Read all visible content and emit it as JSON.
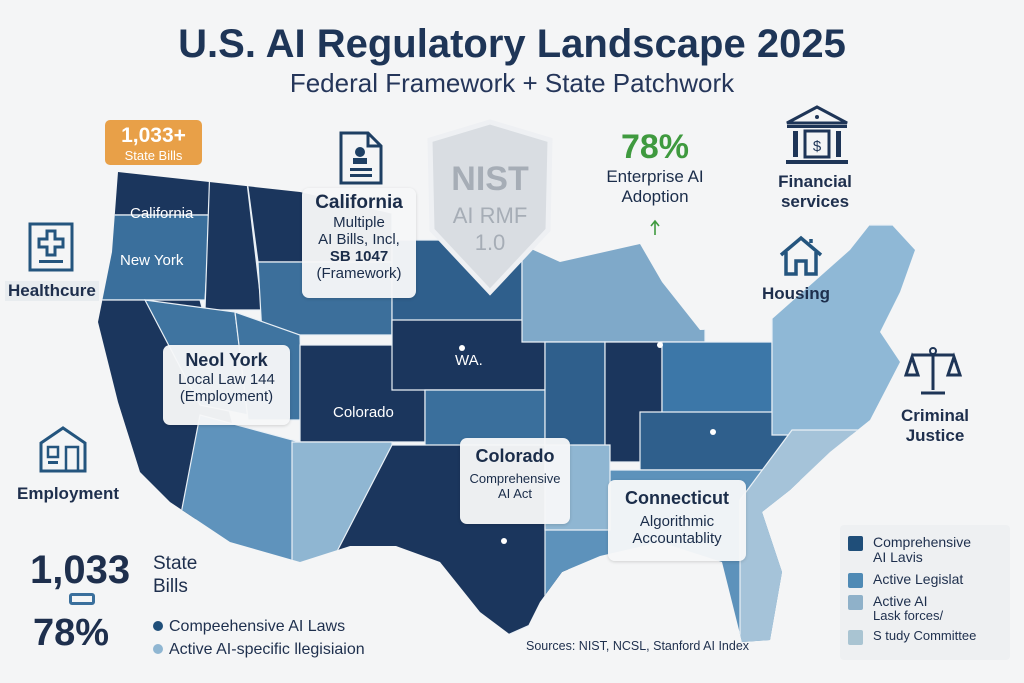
{
  "header": {
    "title": "U.S. AI Regulatory Landscape 2025",
    "subtitle": "Federal Framework + State Patchwork"
  },
  "badge": {
    "value": "1,033+",
    "label": "State Bills",
    "color": "#e8a048"
  },
  "shield": {
    "line1": "NIST",
    "line2": "AI RMF",
    "line3": "1.0"
  },
  "adoption": {
    "value": "78%",
    "label1": "Enterprise AI",
    "label2": "Adoption",
    "color": "#3f9a3f"
  },
  "map_labels": {
    "wa": "California",
    "or": "New York",
    "mid": "WA.",
    "co": "Colorado"
  },
  "cards": {
    "california": {
      "title": "California",
      "l1": "Multiple",
      "l2": "AI Bills, Incl,",
      "l3": "SB 1047",
      "l4": "(Framework)"
    },
    "newyork": {
      "title": "Neol York",
      "l1": "Local Law 144",
      "l2": "(Employment)"
    },
    "colorado": {
      "title": "Colorado",
      "l1": "Comprehensive",
      "l2": "AI Act"
    },
    "connecticut": {
      "title": "Connecticut",
      "l1": "Algorithmic",
      "l2": "Accountablity"
    }
  },
  "sectors": {
    "healthcare": "Healthcure",
    "employment": "Employment",
    "financial1": "Financial",
    "financial2": "services",
    "housing": "Housing",
    "criminal1": "Criminal",
    "criminal2": "Justice"
  },
  "stats": {
    "bills": "1,033",
    "bills_l1": "State",
    "bills_l2": "Bills",
    "pct": "78%",
    "k1": "Compeehensive AI Laws",
    "k2": "Active AI-specific llegisiaion"
  },
  "legend": {
    "items": [
      {
        "label1": "Comprehensive",
        "label2": "AI Lavis",
        "color": "#1f4e79"
      },
      {
        "label1": "Active Legislat",
        "label2": "",
        "color": "#4f8ab5"
      },
      {
        "label1": "Active AI",
        "label2": "Lask forces/",
        "color": "#8fb1c9"
      },
      {
        "label1": "S tudy Committee",
        "label2": "",
        "color": "#a9c4d2"
      }
    ]
  },
  "sources": "Sources: NIST, NCSL, Stanford AI Index",
  "colors": {
    "navy": "#1b365d",
    "mid": "#3a6f9c",
    "light": "#8fb6d2"
  }
}
